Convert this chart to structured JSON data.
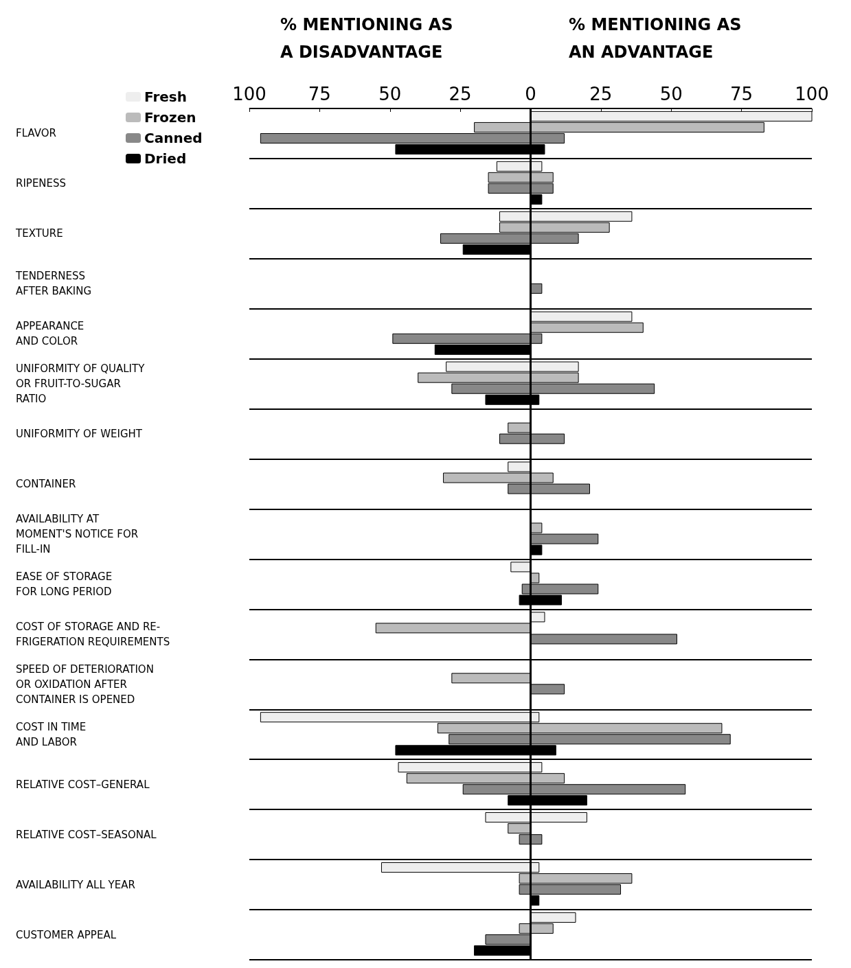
{
  "chart_data": {
    "type": "bar",
    "orientation": "horizontal",
    "categories": [
      "FLAVOR",
      "RIPENESS",
      "TEXTURE",
      "TENDERNESS\nAFTER BAKING",
      "APPEARANCE\nAND COLOR",
      "UNIFORMITY OF QUALITY\nOR FRUIT-TO-SUGAR\nRATIO",
      "UNIFORMITY OF WEIGHT",
      "CONTAINER",
      "AVAILABILITY AT\nMOMENT'S NOTICE FOR\nFILL-IN",
      "EASE OF STORAGE\nFOR LONG PERIOD",
      "COST OF STORAGE AND RE-\nFRIGERATION REQUIREMENTS",
      "SPEED OF DETERIORATION\nOR OXIDATION AFTER\nCONTAINER IS OPENED",
      "COST IN TIME\nAND LABOR",
      "RELATIVE COST–GENERAL",
      "RELATIVE COST–SEASONAL",
      "AVAILABILITY ALL YEAR",
      "CUSTOMER APPEAL"
    ],
    "series": [
      {
        "name": "Fresh",
        "color": "#eeeeee",
        "base": [
          0,
          -12,
          -11,
          null,
          0,
          -30,
          null,
          -8,
          null,
          -7,
          0,
          null,
          -96,
          -47,
          -16,
          -53,
          0
        ],
        "values": [
          100,
          16,
          47,
          null,
          36,
          47,
          null,
          8,
          null,
          7,
          5,
          null,
          99,
          51,
          36,
          56,
          16
        ]
      },
      {
        "name": "Frozen",
        "color": "#bbbbbb",
        "base": [
          -20,
          -15,
          -11,
          null,
          0,
          -40,
          -8,
          -31,
          0,
          0,
          -55,
          -28,
          -33,
          -44,
          -8,
          -4,
          -4
        ],
        "values": [
          103,
          23,
          39,
          null,
          40,
          57,
          8,
          39,
          4,
          3,
          55,
          28,
          101,
          56,
          8,
          40,
          12
        ]
      },
      {
        "name": "Canned",
        "color": "#888888",
        "base": [
          -96,
          -15,
          -32,
          0,
          -49,
          -28,
          -11,
          -8,
          0,
          -3,
          0,
          0,
          -29,
          -24,
          -4,
          -4,
          -16
        ],
        "values": [
          108,
          23,
          49,
          4,
          53,
          72,
          23,
          29,
          24,
          27,
          52,
          12,
          100,
          79,
          8,
          36,
          16
        ]
      },
      {
        "name": "Dried",
        "color": "#000000",
        "base": [
          -48,
          0,
          -24,
          null,
          -34,
          -16,
          null,
          null,
          0,
          -4,
          null,
          null,
          -48,
          -8,
          null,
          0,
          -20
        ],
        "values": [
          53,
          4,
          24,
          null,
          34,
          19,
          null,
          null,
          4,
          15,
          null,
          null,
          57,
          28,
          null,
          3,
          20
        ]
      }
    ],
    "xlim": [
      -100,
      100
    ],
    "xticks": [
      {
        "value": -100,
        "label": "100"
      },
      {
        "value": -75,
        "label": "75"
      },
      {
        "value": -50,
        "label": "50"
      },
      {
        "value": -25,
        "label": "25"
      },
      0,
      25,
      50,
      75,
      100
    ],
    "ref_lines": [
      {
        "axis": "x",
        "value": 0
      }
    ],
    "annotations": [
      "% MENTIONING AS\nA DISADVANTAGE",
      "% MENTIONING AS\nAN ADVANTAGE"
    ],
    "legend": "top left"
  }
}
